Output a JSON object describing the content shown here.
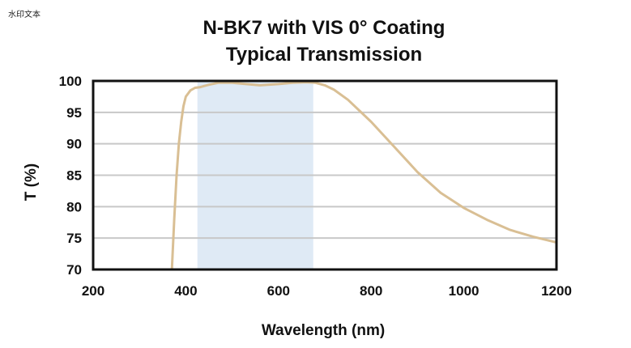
{
  "watermark": "水印文本",
  "chart_data": {
    "type": "line",
    "title": "N-BK7 with VIS 0° Coating",
    "subtitle": "Typical Transmission",
    "xlabel": "Wavelength (nm)",
    "ylabel": "T (%)",
    "xlim": [
      200,
      1200
    ],
    "ylim": [
      70,
      100
    ],
    "xticks": [
      200,
      400,
      600,
      800,
      1000,
      1200
    ],
    "yticks": [
      70,
      75,
      80,
      85,
      90,
      95,
      100
    ],
    "grid": true,
    "shaded_band": {
      "x_start": 425,
      "x_end": 675,
      "color": "#dfeaf5"
    },
    "series": [
      {
        "color": "#d9bf94",
        "x": [
          370,
          375,
          380,
          385,
          390,
          395,
          400,
          410,
          420,
          430,
          440,
          450,
          470,
          500,
          530,
          560,
          600,
          630,
          660,
          680,
          700,
          720,
          750,
          800,
          850,
          900,
          950,
          1000,
          1050,
          1100,
          1150,
          1200
        ],
        "y": [
          70,
          78,
          85,
          90,
          93.5,
          96,
          97.5,
          98.5,
          98.9,
          99.0,
          99.2,
          99.4,
          99.7,
          99.7,
          99.5,
          99.3,
          99.5,
          99.7,
          99.8,
          99.7,
          99.3,
          98.6,
          97.0,
          93.5,
          89.5,
          85.5,
          82.2,
          79.8,
          77.9,
          76.3,
          75.2,
          74.3
        ]
      }
    ]
  }
}
